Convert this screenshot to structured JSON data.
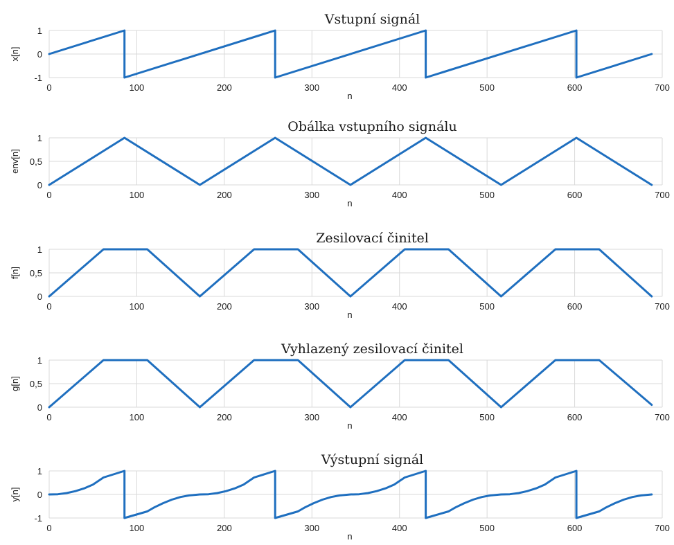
{
  "colors": {
    "series": "#1f6fbf",
    "grid": "#d9d9d9",
    "text": "#1a1a1a"
  },
  "chart_data": [
    {
      "type": "line",
      "title": "Vstupní signál",
      "xlabel": "n",
      "ylabel": "x[n]",
      "xlim": [
        0,
        700
      ],
      "ylim": [
        -1,
        1
      ],
      "xticks": [
        0,
        100,
        200,
        300,
        400,
        500,
        600,
        700
      ],
      "yticks": [
        -1,
        0,
        1
      ],
      "ytick_labels": [
        "-1",
        "0",
        "1"
      ],
      "grid": true,
      "series": [
        {
          "x": [
            0,
            86,
            86,
            258,
            258,
            430,
            430,
            602,
            602,
            688
          ],
          "y": [
            0,
            1,
            -1,
            1,
            -1,
            1,
            -1,
            1,
            -1,
            0
          ]
        }
      ]
    },
    {
      "type": "line",
      "title": "Obálka vstupního signálu",
      "xlabel": "n",
      "ylabel": "env[n]",
      "xlim": [
        0,
        700
      ],
      "ylim": [
        0,
        1
      ],
      "xticks": [
        0,
        100,
        200,
        300,
        400,
        500,
        600,
        700
      ],
      "yticks": [
        0,
        0.5,
        1
      ],
      "ytick_labels": [
        "0",
        "0,5",
        "1"
      ],
      "grid": true,
      "series": [
        {
          "x": [
            0,
            86,
            172,
            258,
            344,
            430,
            516,
            602,
            688
          ],
          "y": [
            0,
            1,
            0,
            1,
            0,
            1,
            0,
            1,
            0
          ]
        }
      ]
    },
    {
      "type": "line",
      "title": "Zesilovací činitel",
      "xlabel": "n",
      "ylabel": "f[n]",
      "xlim": [
        0,
        700
      ],
      "ylim": [
        0,
        1
      ],
      "xticks": [
        0,
        100,
        200,
        300,
        400,
        500,
        600,
        700
      ],
      "yticks": [
        0,
        0.5,
        1
      ],
      "ytick_labels": [
        "0",
        "0,5",
        "1"
      ],
      "grid": true,
      "series": [
        {
          "x": [
            0,
            62,
            112,
            172,
            234,
            284,
            344,
            406,
            456,
            516,
            578,
            628,
            688
          ],
          "y": [
            0,
            1,
            1,
            0,
            1,
            1,
            0,
            1,
            1,
            0,
            1,
            1,
            0
          ]
        }
      ]
    },
    {
      "type": "line",
      "title": "Vyhlazený zesilovací činitel",
      "xlabel": "n",
      "ylabel": "g[n]",
      "xlim": [
        0,
        700
      ],
      "ylim": [
        0,
        1
      ],
      "xticks": [
        0,
        100,
        200,
        300,
        400,
        500,
        600,
        700
      ],
      "yticks": [
        0,
        0.5,
        1
      ],
      "ytick_labels": [
        "0",
        "0,5",
        "1"
      ],
      "grid": true,
      "series": [
        {
          "x": [
            0,
            62,
            112,
            172,
            234,
            284,
            344,
            406,
            456,
            516,
            578,
            628,
            688
          ],
          "y": [
            0,
            1,
            1,
            0,
            1,
            1,
            0,
            1,
            1,
            0,
            1,
            1,
            0.05
          ]
        }
      ]
    },
    {
      "type": "line",
      "title": "Výstupní signál",
      "xlabel": "n",
      "ylabel": "y[n]",
      "xlim": [
        0,
        700
      ],
      "ylim": [
        -1,
        1
      ],
      "xticks": [
        0,
        100,
        200,
        300,
        400,
        500,
        600,
        700
      ],
      "yticks": [
        -1,
        0,
        1
      ],
      "ytick_labels": [
        "-1",
        "0",
        "1"
      ],
      "grid": true,
      "series": [
        {
          "x": [
            0,
            10,
            20,
            30,
            40,
            50,
            62,
            86,
            86,
            112,
            120,
            130,
            140,
            150,
            160,
            172,
            182,
            192,
            202,
            212,
            222,
            234,
            258,
            258,
            284,
            292,
            302,
            312,
            322,
            332,
            344,
            354,
            364,
            374,
            384,
            394,
            406,
            430,
            430,
            456,
            464,
            474,
            484,
            494,
            504,
            516,
            526,
            536,
            546,
            556,
            566,
            578,
            602,
            602,
            628,
            636,
            646,
            656,
            666,
            676,
            688
          ],
          "y": [
            0,
            0.01,
            0.06,
            0.14,
            0.26,
            0.42,
            0.72,
            1,
            -1,
            -0.72,
            -0.55,
            -0.37,
            -0.22,
            -0.11,
            -0.04,
            0,
            0.01,
            0.06,
            0.14,
            0.26,
            0.42,
            0.72,
            1,
            -1,
            -0.72,
            -0.55,
            -0.37,
            -0.22,
            -0.11,
            -0.04,
            0,
            0.01,
            0.06,
            0.14,
            0.26,
            0.42,
            0.72,
            1,
            -1,
            -0.72,
            -0.55,
            -0.37,
            -0.22,
            -0.11,
            -0.04,
            0,
            0.01,
            0.06,
            0.14,
            0.26,
            0.42,
            0.72,
            1,
            -1,
            -0.72,
            -0.55,
            -0.37,
            -0.22,
            -0.11,
            -0.04,
            0
          ]
        }
      ]
    }
  ]
}
